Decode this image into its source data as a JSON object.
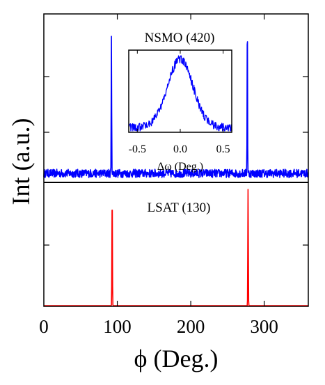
{
  "chart_data": {
    "type": "line",
    "xlabel": "ϕ (Deg.)",
    "ylabel": "Int (a.u.)",
    "xlim": [
      0,
      360
    ],
    "x_ticks": [
      0,
      100,
      200,
      300
    ],
    "x_tick_labels": [
      "0",
      "100",
      "200",
      "300"
    ],
    "y_ticks_shown": false,
    "grid": false,
    "legend": "none",
    "colors": {
      "nsmo": "#0000ff",
      "lsat": "#ff0000",
      "axes": "#000000"
    },
    "series": [
      {
        "name": "NSMO (420)",
        "color": "#0000ff",
        "baseline": 0.05,
        "noise_amplitude": 0.03,
        "peaks": [
          {
            "x": 92,
            "height": 1.0
          },
          {
            "x": 277,
            "height": 1.16
          }
        ]
      },
      {
        "name": "LSAT (130)",
        "color": "#ff0000",
        "baseline": 0.0,
        "noise_amplitude": 0.0,
        "peaks": [
          {
            "x": 93,
            "height": 1.0
          },
          {
            "x": 278,
            "height": 1.0
          }
        ]
      }
    ],
    "annotations": [
      "NSMO (420)",
      "LSAT (130)"
    ],
    "inset": {
      "type": "line",
      "xlabel": "Δω (Deg.)",
      "xlim": [
        -0.6,
        0.6
      ],
      "x_ticks": [
        -0.5,
        0.0,
        0.5
      ],
      "x_tick_labels": [
        "-0.5",
        "0.0",
        "0.5"
      ],
      "color": "#0000ff",
      "profile": {
        "center": 0.0,
        "fwhm": 0.35,
        "peak": 1.0,
        "background": 0.05,
        "noise_amplitude": 0.06
      }
    }
  }
}
